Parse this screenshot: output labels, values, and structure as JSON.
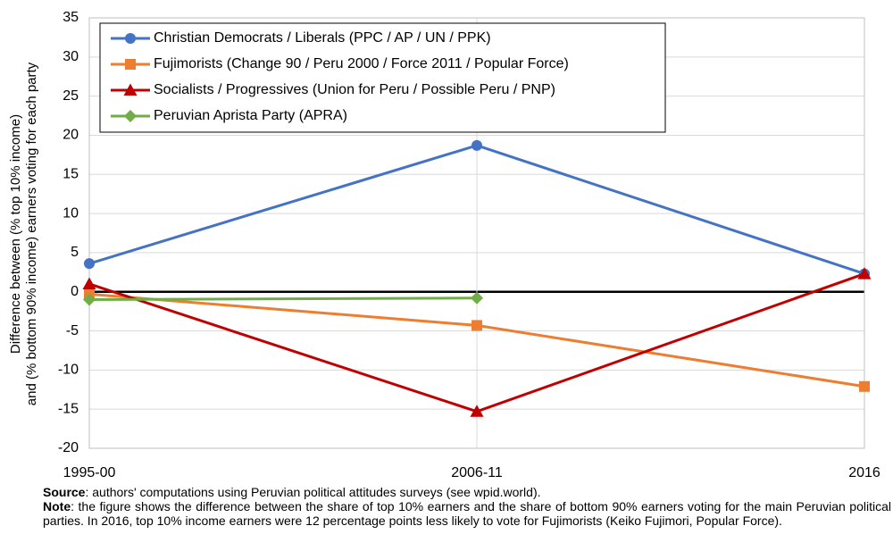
{
  "chart_data": {
    "type": "line",
    "y_label": [
      "Difference between (% top 10% income)",
      "and (% bottom 90% income) earners voting for each party"
    ],
    "categories": [
      "1995-00",
      "2006-11",
      "2016"
    ],
    "series": [
      {
        "name": "Christian Democrats / Liberals (PPC / AP / UN / PPK)",
        "color": "#4472c4",
        "marker": "circle",
        "values": [
          3.6,
          18.7,
          2.3
        ]
      },
      {
        "name": "Fujimorists (Change 90 / Peru 2000 / Force 2011 / Popular Force)",
        "color": "#ed7d31",
        "marker": "square",
        "values": [
          -0.3,
          -4.3,
          -12.1
        ]
      },
      {
        "name": "Socialists / Progressives (Union for Peru / Possible Peru / PNP)",
        "color": "#c00000",
        "marker": "triangle",
        "values": [
          1.0,
          -15.3,
          2.3
        ]
      },
      {
        "name": "Peruvian Aprista Party (APRA)",
        "color": "#70ad47",
        "marker": "diamond",
        "values": [
          -1.0,
          -0.8,
          null
        ]
      }
    ],
    "ylim": [
      -20,
      35
    ],
    "yticks": [
      -20,
      -15,
      -10,
      -5,
      0,
      5,
      10,
      15,
      20,
      25,
      30,
      35
    ],
    "grid": true,
    "legend": "top-left",
    "source_label": "Source",
    "source_text": ": authors' computations using Peruvian political attitudes surveys (see wpid.world).",
    "note_label": "Note",
    "note_text": ": the figure shows the difference between the share of top 10% earners and the share of bottom 90% earners voting for the main Peruvian political parties. In 2016, top 10% income earners were 12 percentage points less likely to vote for Fujimorists (Keiko Fujimori, Popular Force)."
  }
}
